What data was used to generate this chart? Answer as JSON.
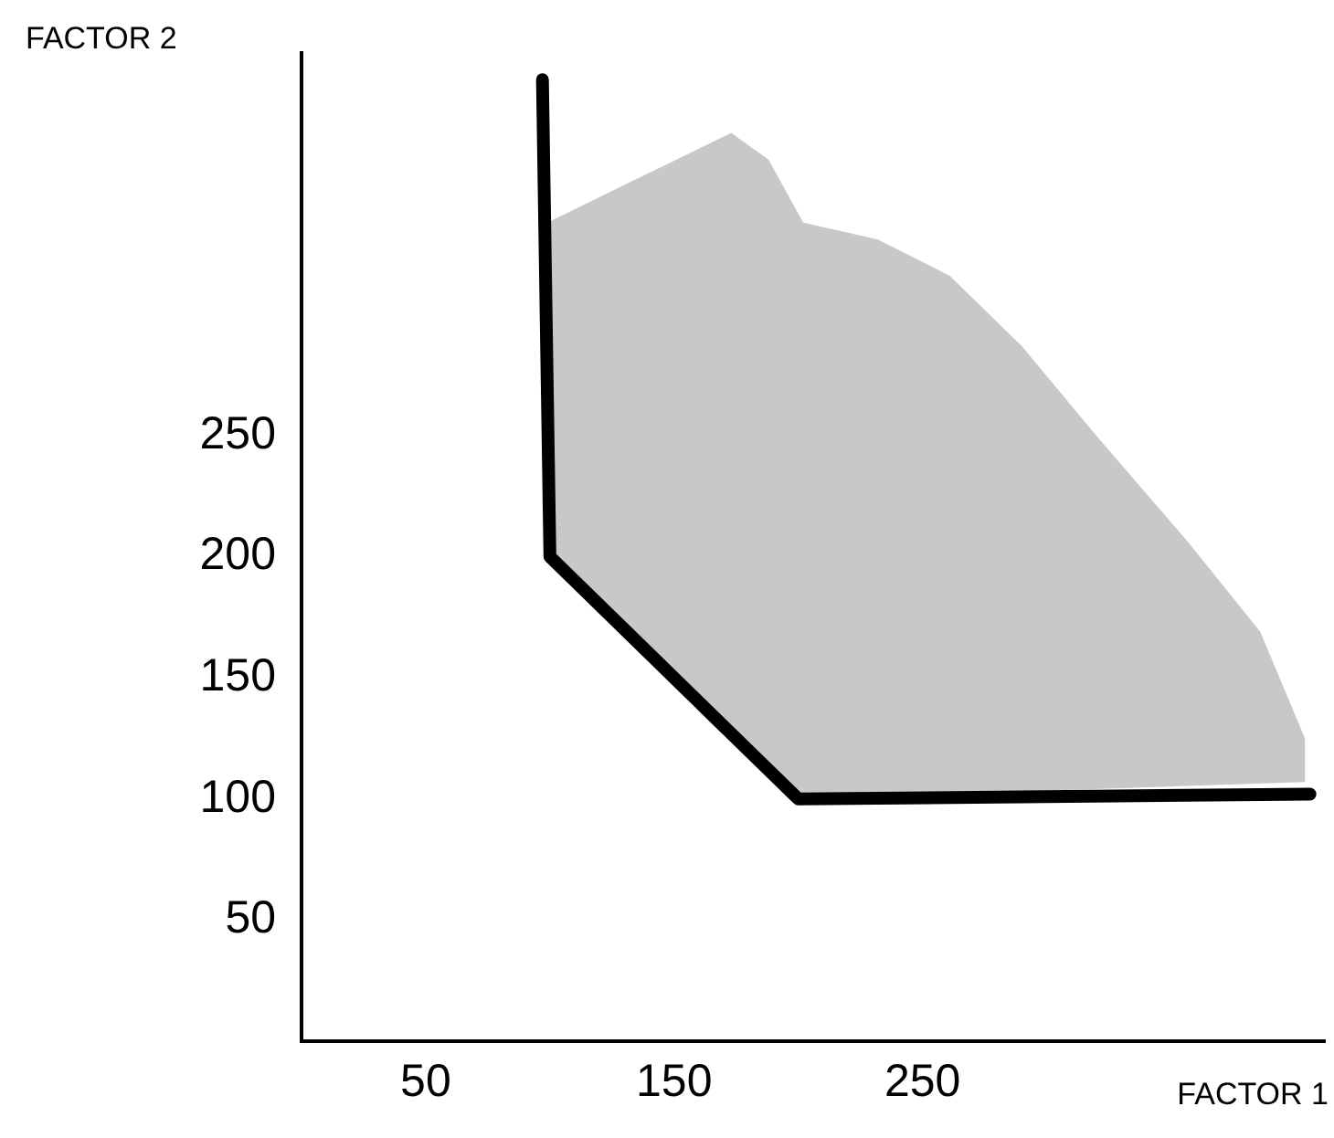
{
  "chart_data": {
    "type": "line",
    "xlabel": "FACTOR 1",
    "ylabel": "FACTOR 2",
    "xlim": [
      0,
      412
    ],
    "ylim": [
      0,
      408
    ],
    "xticks": [
      50,
      150,
      250
    ],
    "yticks": [
      50,
      100,
      150,
      200,
      250
    ],
    "grid": false,
    "legend": false,
    "series": [
      {
        "type": "area",
        "color": "#c8c8c8",
        "x": [
          99,
          129,
          173,
          188,
          202,
          232,
          261,
          290,
          320,
          357,
          386,
          404,
          404,
          200,
          100,
          99
        ],
        "values": [
          338,
          353,
          375,
          364,
          338,
          331,
          316,
          287,
          250,
          206,
          169,
          125,
          107,
          100,
          200,
          338
        ]
      },
      {
        "color": "#000000",
        "x": [
          97,
          100,
          200,
          406
        ],
        "values": [
          397,
          200,
          100,
          102
        ]
      }
    ]
  }
}
